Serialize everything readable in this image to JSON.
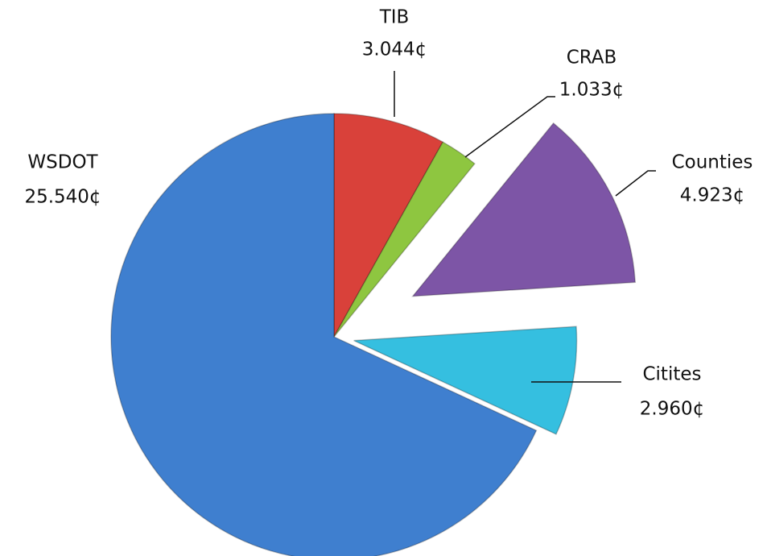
{
  "chart_data": {
    "type": "pie",
    "categories": [
      "TIB",
      "CRAB",
      "Counties",
      "Citites",
      "WSDOT"
    ],
    "values": [
      3.044,
      1.033,
      4.923,
      2.96,
      25.54
    ],
    "value_labels": [
      "3.044¢",
      "1.033¢",
      "4.923¢",
      "2.960¢",
      "25.540¢"
    ],
    "colors": [
      "#d9413a",
      "#8ec640",
      "#7d55a6",
      "#35bfe0",
      "#3f7fcf"
    ]
  }
}
